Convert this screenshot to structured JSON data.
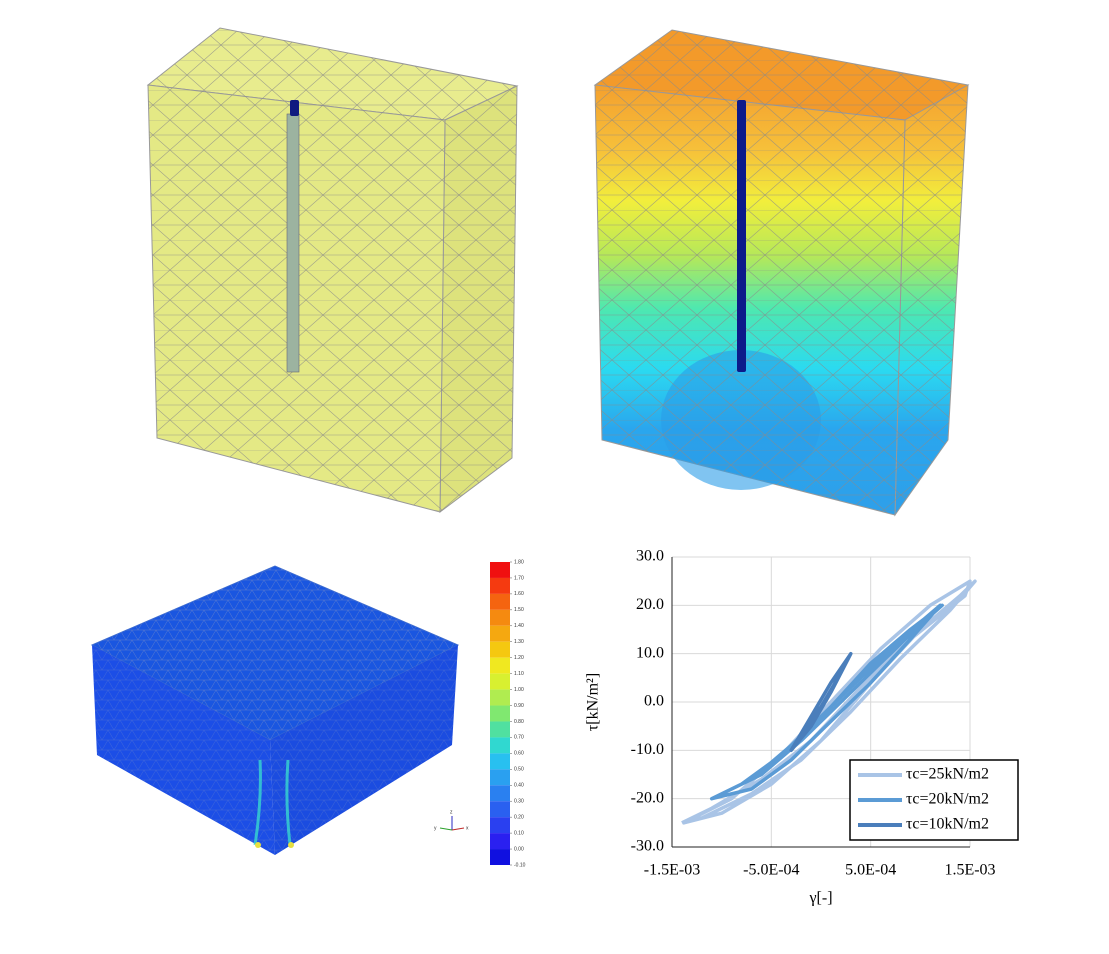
{
  "chart_data": {
    "type": "line",
    "xlabel": "γ[-]",
    "ylabel": "τ[kN/m²]",
    "xlim": [
      -0.0015,
      0.0015
    ],
    "xticks": [
      {
        "value": -0.0015,
        "label": "-1.5E-03"
      },
      {
        "value": -0.0005,
        "label": "-5.0E-04"
      },
      {
        "value": 0.0005,
        "label": "5.0E-04"
      },
      {
        "value": 0.0015,
        "label": "1.5E-03"
      }
    ],
    "ylim": [
      -30,
      30
    ],
    "yticks": [
      {
        "value": -30,
        "label": "-30.0"
      },
      {
        "value": -20,
        "label": "-20.0"
      },
      {
        "value": -10,
        "label": "-10.0"
      },
      {
        "value": 0,
        "label": "0.0"
      },
      {
        "value": 10,
        "label": "10.0"
      },
      {
        "value": 20,
        "label": "20.0"
      },
      {
        "value": 30,
        "label": "30.0"
      }
    ],
    "grid": true,
    "legend": "lower right",
    "series": [
      {
        "name": "τc=25kN/m2",
        "color": "#a9c4e6",
        "x": [
          -0.00138,
          -0.001,
          -0.0005,
          0,
          0.0005,
          0.001,
          0.0014,
          0.00155,
          0.0013,
          0.0008,
          0.0003,
          -0.0002,
          -0.0007,
          -0.0012,
          -0.00138,
          -0.0009,
          -0.0004,
          0.0001,
          0.0006,
          0.0011,
          0.0015,
          0.00145,
          0.0009,
          0.0004,
          -0.0001,
          -0.0006,
          -0.0011,
          -0.0014
        ],
        "values": [
          -25,
          -23,
          -17,
          -8,
          4,
          15,
          22,
          25,
          19,
          9,
          -2,
          -12,
          -19,
          -24,
          -25,
          -20,
          -11,
          0,
          11,
          20,
          25,
          22,
          13,
          3,
          -8,
          -16,
          -22,
          -25
        ]
      },
      {
        "name": "τc=20kN/m2",
        "color": "#5b9bd5",
        "x": [
          -0.0011,
          -0.0007,
          -0.0003,
          0.0001,
          0.0005,
          0.0009,
          0.00122,
          0.001,
          0.0006,
          0.0002,
          -0.0002,
          -0.0006,
          -0.0011,
          -0.0008,
          -0.0004,
          0,
          0.0004,
          0.0008,
          0.0012,
          0.0009,
          0.0005,
          0.0001,
          -0.0003,
          -0.0007,
          -0.0011
        ],
        "values": [
          -20,
          -16,
          -9,
          -1,
          8,
          15,
          20,
          16,
          8,
          0,
          -8,
          -15,
          -20,
          -17,
          -11,
          -3,
          5,
          13,
          20,
          13,
          4,
          -4,
          -12,
          -18,
          -20
        ]
      },
      {
        "name": "τc=10kN/m2",
        "color": "#4a7ebb",
        "x": [
          -0.0003,
          -0.0001,
          0.0001,
          0.0003,
          0.0002,
          0,
          -0.0002,
          -0.0003,
          -0.0001,
          0.0001,
          0.0003
        ],
        "values": [
          -10,
          -5,
          2,
          10,
          6,
          -1,
          -7,
          -10,
          -3,
          4,
          10
        ]
      }
    ]
  },
  "contour_scale": {
    "ticks": [
      {
        "value": 1.8,
        "label": "1.80"
      },
      {
        "value": 1.7,
        "label": "1.70"
      },
      {
        "value": 1.6,
        "label": "1.60"
      },
      {
        "value": 1.5,
        "label": "1.50"
      },
      {
        "value": 1.4,
        "label": "1.40"
      },
      {
        "value": 1.3,
        "label": "1.30"
      },
      {
        "value": 1.2,
        "label": "1.20"
      },
      {
        "value": 1.1,
        "label": "1.10"
      },
      {
        "value": 1.0,
        "label": "1.00"
      },
      {
        "value": 0.9,
        "label": "0.90"
      },
      {
        "value": 0.8,
        "label": "0.80"
      },
      {
        "value": 0.7,
        "label": "0.70"
      },
      {
        "value": 0.6,
        "label": "0.60"
      },
      {
        "value": 0.5,
        "label": "0.50"
      },
      {
        "value": 0.4,
        "label": "0.40"
      },
      {
        "value": 0.3,
        "label": "0.30"
      },
      {
        "value": 0.2,
        "label": "0.20"
      },
      {
        "value": 0.1,
        "label": "0.10"
      },
      {
        "value": 0,
        "label": "0.00"
      },
      {
        "value": -0.1,
        "label": "-0.10"
      }
    ]
  },
  "axis_triad": {
    "z": "z",
    "y": "y",
    "x": "x"
  }
}
